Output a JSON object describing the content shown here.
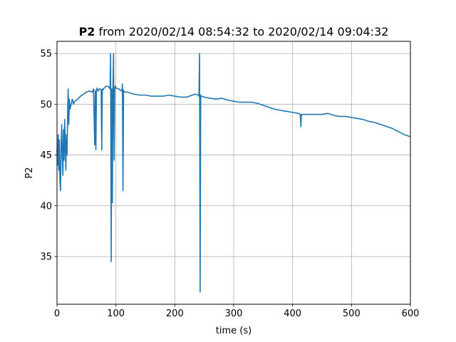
{
  "chart_data": {
    "type": "line",
    "title_bold": "P2",
    "title_rest": " from 2020/02/14 08:54:32 to 2020/02/14 09:04:32",
    "xlabel": "time (s)",
    "ylabel": "P2",
    "xlim": [
      0,
      600
    ],
    "ylim": [
      30.3,
      56.2
    ],
    "xticks": [
      0,
      100,
      200,
      300,
      400,
      500,
      600
    ],
    "yticks": [
      35,
      40,
      45,
      50,
      55
    ],
    "grid": true,
    "series_color": "#1f77b4",
    "series": [
      {
        "x": [
          0,
          1,
          2,
          3,
          4,
          5,
          6,
          7,
          8,
          9,
          10,
          11,
          12,
          13,
          14,
          15,
          16,
          17,
          18,
          19,
          20,
          21,
          22,
          24,
          26,
          28,
          30,
          35,
          40,
          45,
          50,
          55,
          60,
          62,
          64,
          65,
          66,
          67,
          68,
          70,
          72,
          74,
          75,
          76,
          77,
          78,
          80,
          84,
          88,
          90,
          91,
          92,
          93,
          94,
          95,
          96,
          97,
          98,
          99,
          100,
          105,
          110,
          111,
          112,
          113,
          114,
          116,
          120,
          130,
          140,
          150,
          160,
          170,
          180,
          190,
          200,
          210,
          220,
          230,
          235,
          240,
          241,
          242,
          243,
          244,
          245,
          250,
          260,
          270,
          280,
          290,
          300,
          310,
          320,
          330,
          340,
          350,
          360,
          370,
          380,
          390,
          400,
          410,
          413,
          414,
          415,
          416,
          420,
          430,
          440,
          450,
          460,
          470,
          480,
          490,
          500,
          510,
          520,
          530,
          540,
          550,
          560,
          570,
          580,
          590,
          600
        ],
        "y": [
          45.5,
          44.0,
          47.0,
          43.5,
          46.5,
          42.5,
          41.5,
          46.0,
          48.0,
          45.0,
          43.0,
          47.5,
          44.5,
          48.5,
          46.0,
          43.5,
          47.0,
          45.0,
          49.0,
          51.5,
          48.0,
          50.5,
          49.5,
          50.0,
          50.5,
          50.0,
          50.3,
          50.5,
          50.8,
          51.0,
          51.2,
          51.3,
          51.2,
          51.5,
          46.0,
          51.4,
          45.5,
          51.2,
          51.6,
          51.3,
          51.5,
          51.5,
          51.4,
          45.5,
          51.5,
          51.4,
          51.6,
          51.8,
          51.7,
          51.5,
          55.0,
          34.5,
          51.5,
          40.3,
          51.6,
          55.0,
          44.5,
          51.5,
          51.8,
          51.6,
          51.5,
          51.3,
          52.0,
          41.5,
          51.4,
          51.2,
          51.2,
          51.2,
          51.0,
          50.9,
          50.9,
          50.8,
          50.8,
          50.8,
          50.9,
          50.8,
          50.7,
          50.7,
          50.9,
          51.0,
          50.9,
          50.8,
          55.0,
          31.5,
          50.9,
          50.8,
          50.7,
          50.6,
          50.5,
          50.6,
          50.4,
          50.3,
          50.2,
          50.2,
          50.2,
          50.1,
          49.9,
          49.7,
          49.5,
          49.4,
          49.3,
          49.2,
          49.1,
          49.0,
          47.8,
          49.0,
          49.0,
          49.0,
          49.0,
          49.0,
          49.0,
          49.1,
          48.9,
          48.8,
          48.8,
          48.7,
          48.6,
          48.5,
          48.3,
          48.2,
          48.0,
          47.8,
          47.6,
          47.3,
          47.0,
          46.8
        ]
      }
    ]
  }
}
